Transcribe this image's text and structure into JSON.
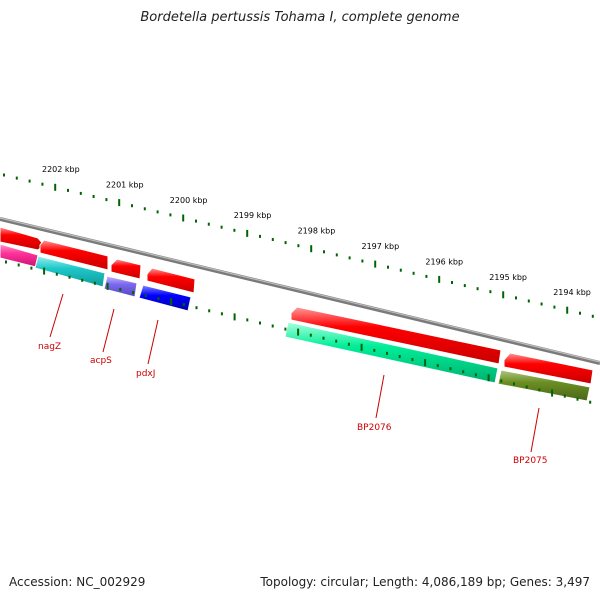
{
  "title": "Bordetella pertussis Tohama I, complete genome",
  "footer": {
    "accession": "Accession: NC_002929",
    "stats": "Topology: circular; Length: 4,086,189 bp; Genes: 3,497"
  },
  "scale_labels": [
    "2202 kbp",
    "2201 kbp",
    "2200 kbp",
    "2199 kbp",
    "2198 kbp",
    "2197 kbp",
    "2196 kbp",
    "2195 kbp",
    "2194 kbp"
  ],
  "gene_labels": [
    "nagZ",
    "acpS",
    "pdxJ",
    "BP2076",
    "BP2075"
  ],
  "colors": {
    "backbone": "#808080",
    "forward_gene": "#ff0000",
    "ticks": "#006400",
    "label": "#cc0000",
    "feature_magenta": "#ff3399",
    "feature_cyan": "#1ec8c8",
    "feature_slate": "#7b68ee",
    "feature_blue": "#0000ff",
    "feature_green": "#00ee99",
    "feature_olive": "#6b8e23"
  }
}
